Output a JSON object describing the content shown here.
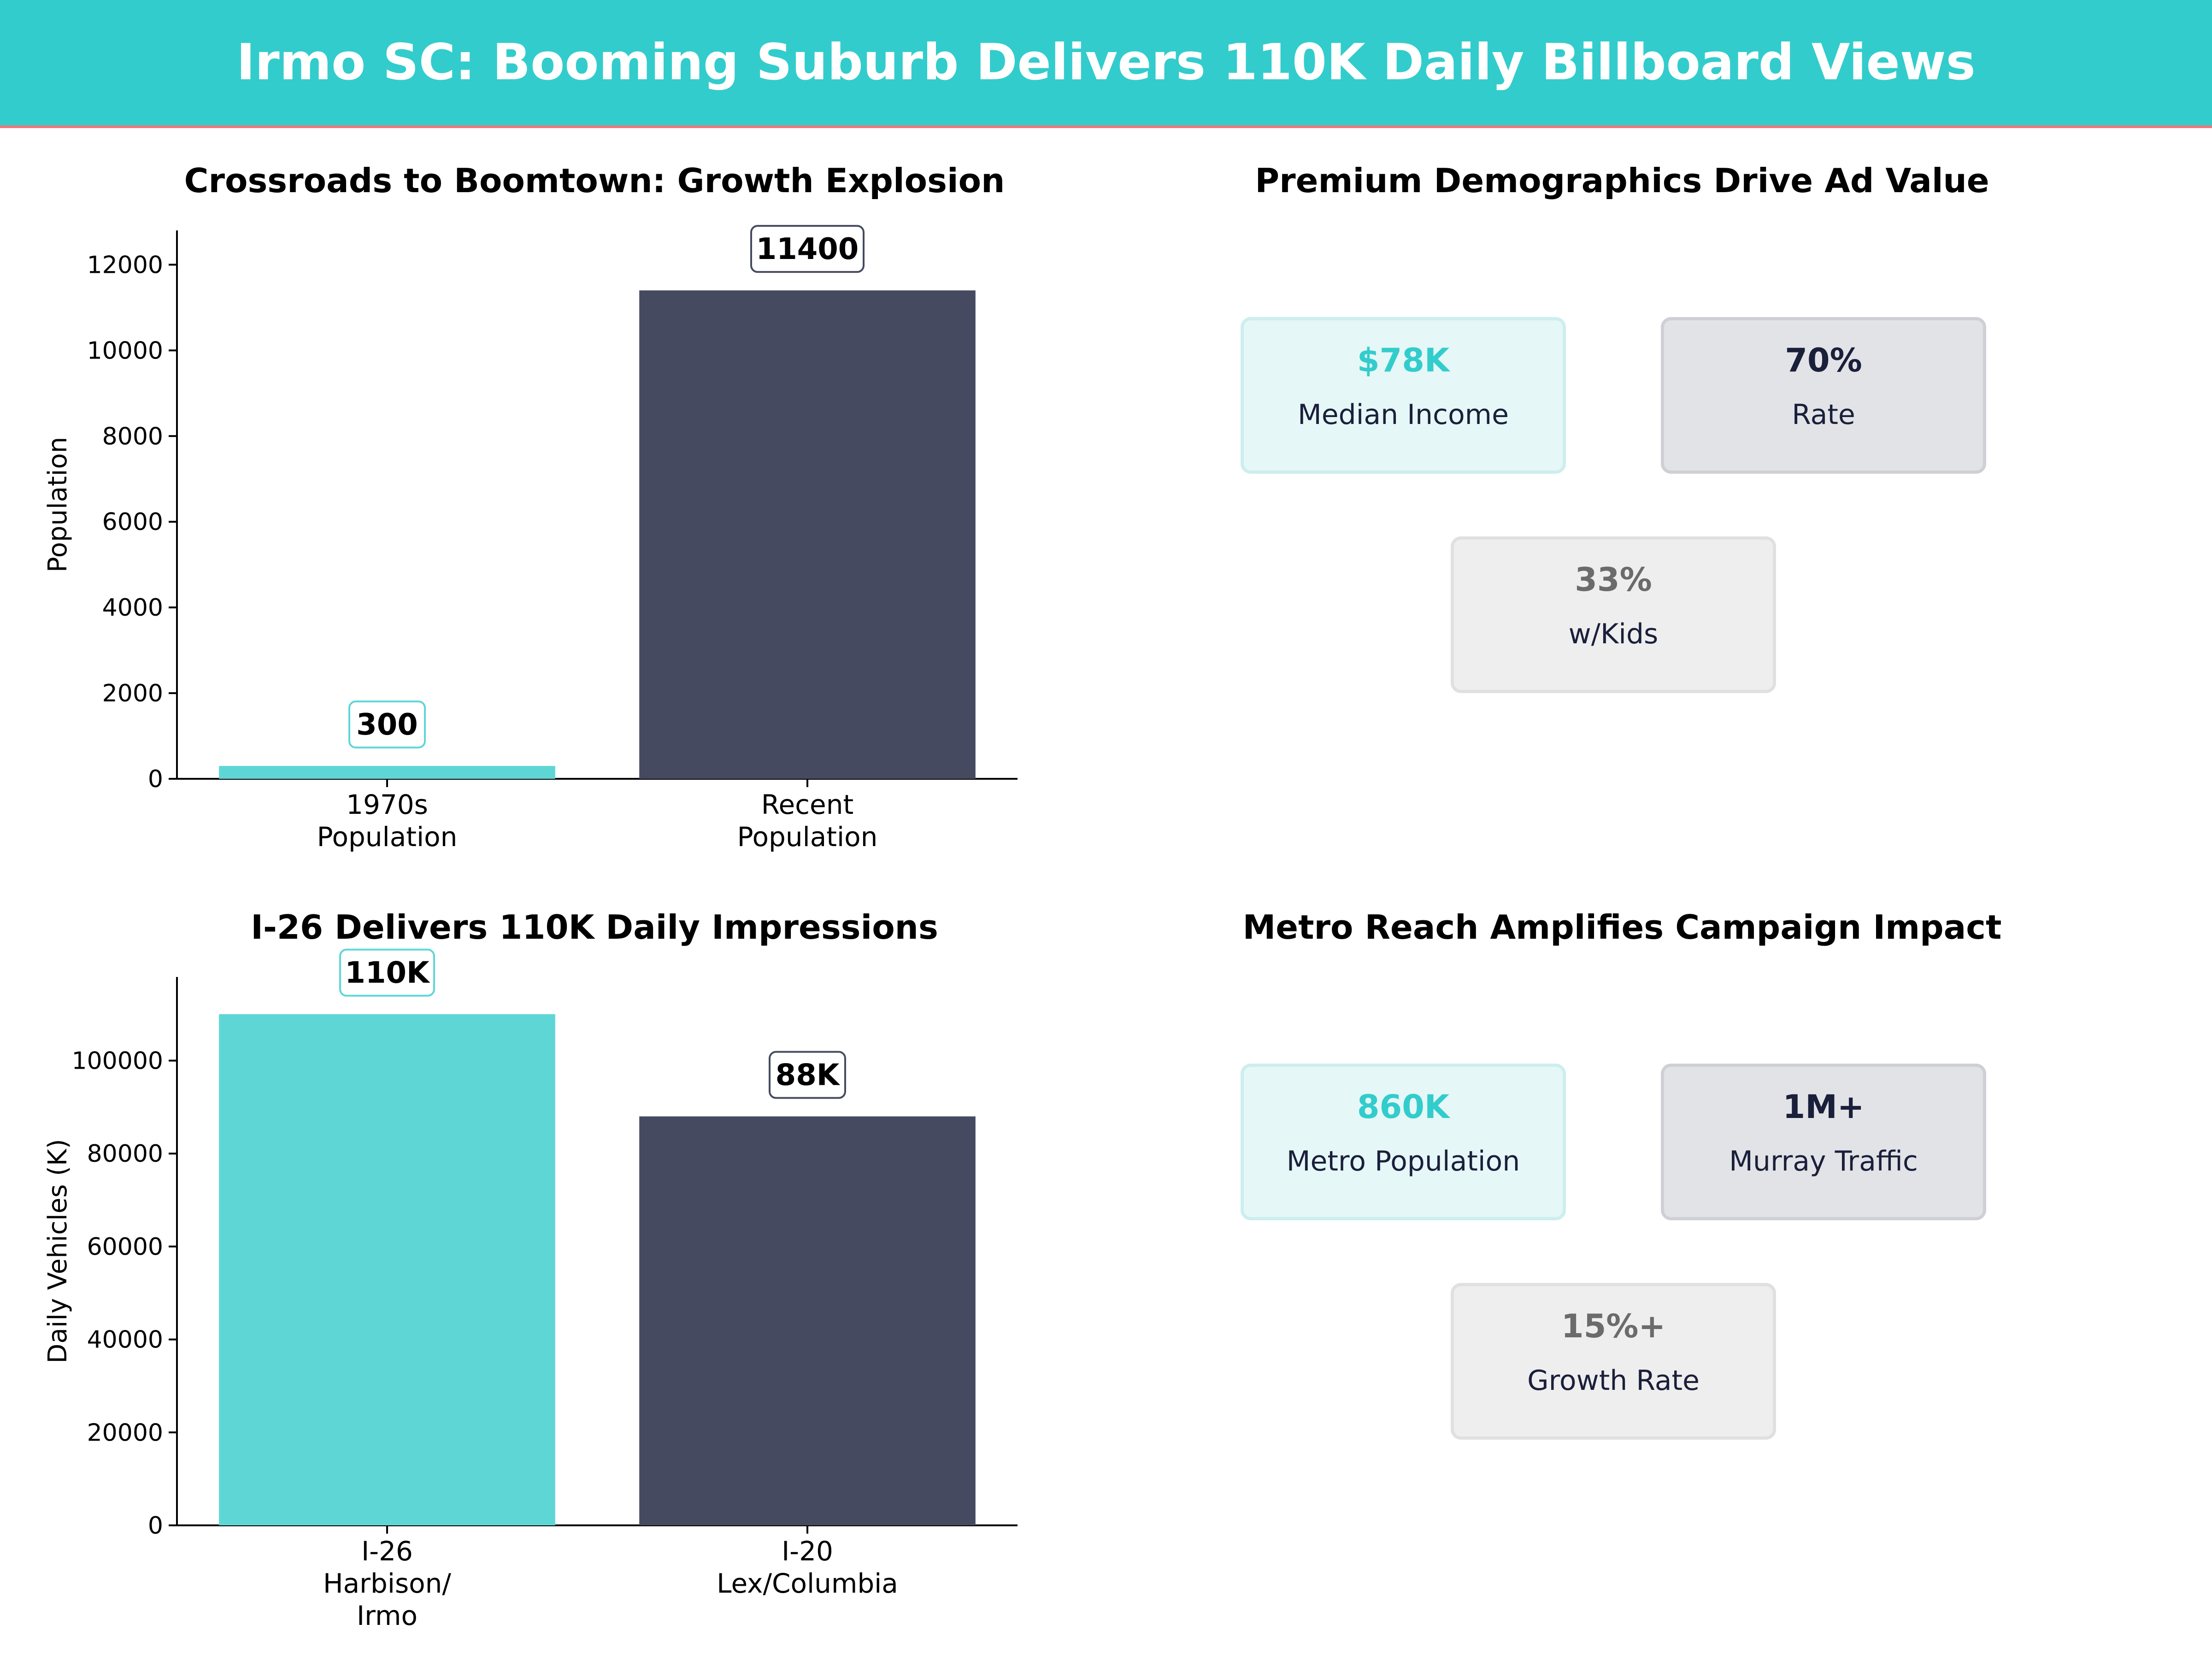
{
  "title": "Irmo SC: Booming Suburb Delivers 110K Daily Billboard Views",
  "colors": {
    "accent": "#33cccc",
    "dark": "#454a60",
    "stripe": "#e97a7a"
  },
  "chart_data": [
    {
      "type": "bar",
      "title": "Crossroads to Boomtown: Growth Explosion",
      "ylabel": "Population",
      "categories": [
        "1970s\nPopulation",
        "Recent\nPopulation"
      ],
      "values": [
        300,
        11400
      ],
      "value_labels": [
        "300",
        "11400"
      ],
      "bar_colors": [
        "#5fd6d6",
        "#454a60"
      ],
      "label_border_colors": [
        "#5fd6d6",
        "#454a60"
      ],
      "ylim": [
        0,
        12800
      ],
      "yticks": [
        0,
        2000,
        4000,
        6000,
        8000,
        10000,
        12000
      ],
      "grid": false
    },
    {
      "type": "bar",
      "title": "I-26 Delivers 110K Daily Impressions",
      "ylabel": "Daily Vehicles (K)",
      "categories": [
        "I-26\nHarbison/\nIrmo",
        "I-20\nLex/Columbia"
      ],
      "values": [
        110000,
        88000
      ],
      "value_labels": [
        "110K",
        "88K"
      ],
      "bar_colors": [
        "#5fd6d6",
        "#454a60"
      ],
      "label_border_colors": [
        "#5fd6d6",
        "#454a60"
      ],
      "ylim": [
        0,
        118000
      ],
      "yticks": [
        0,
        20000,
        40000,
        60000,
        80000,
        100000
      ],
      "grid": false
    }
  ],
  "demographics": {
    "title": "Premium Demographics Drive Ad Value",
    "cards": [
      {
        "value": "$78K",
        "label": "Median Income",
        "value_color": "#33cccc"
      },
      {
        "value": "70%",
        "label": "Rate",
        "value_color": "#1a1f3a"
      },
      {
        "value": "33%",
        "label": "w/Kids",
        "value_color": "#6b6b6b"
      }
    ]
  },
  "metro": {
    "title": "Metro Reach Amplifies Campaign Impact",
    "cards": [
      {
        "value": "860K",
        "label": "Metro Population",
        "value_color": "#33cccc"
      },
      {
        "value": "1M+",
        "label": "Murray Traffic",
        "value_color": "#1a1f3a"
      },
      {
        "value": "15%+",
        "label": "Growth Rate",
        "value_color": "#6b6b6b"
      }
    ]
  }
}
